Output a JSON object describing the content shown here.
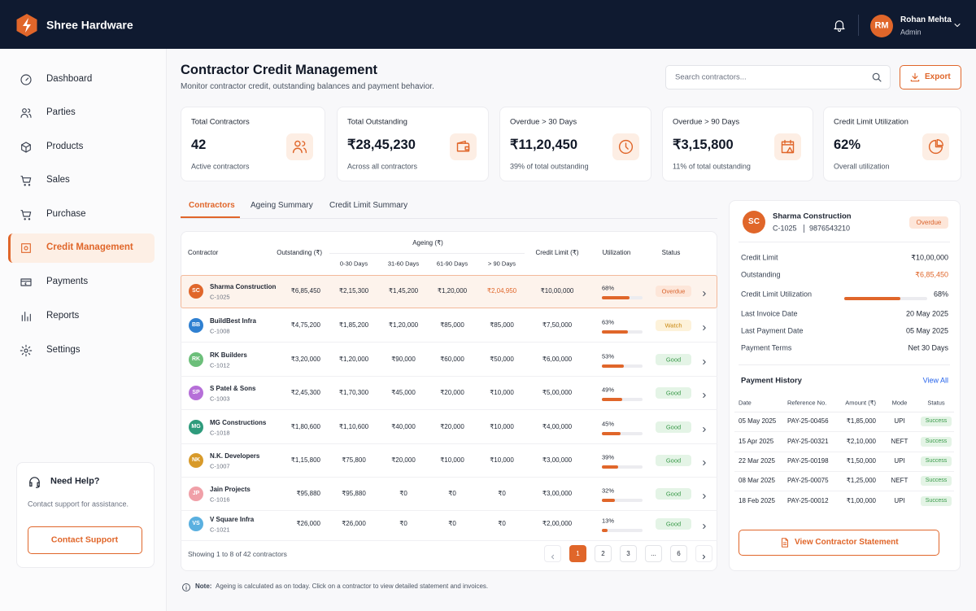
{
  "header": {
    "brand": "Shree Hardware",
    "user": {
      "initials": "RM",
      "name": "Rohan Mehta",
      "role": "Admin"
    }
  },
  "sidebar": {
    "nav": [
      "Dashboard",
      "Parties",
      "Products",
      "Sales",
      "Purchase",
      "Credit Management",
      "Payments",
      "Reports",
      "Settings"
    ],
    "active": 5,
    "help": {
      "title": "Need Help?",
      "text": "Contact support for assistance.",
      "button": "Contact Support"
    }
  },
  "page": {
    "title": "Contractor Credit Management",
    "subtitle": "Monitor contractor credit, outstanding balances and payment behavior.",
    "search_placeholder": "Search contractors...",
    "export": "Export"
  },
  "kpis": [
    {
      "label": "Total Contractors",
      "value": "42",
      "note": "Active contractors"
    },
    {
      "label": "Total Outstanding",
      "value": "₹28,45,230",
      "note": "Across all contractors"
    },
    {
      "label": "Overdue > 30 Days",
      "value": "₹11,20,450",
      "note": "39% of total outstanding"
    },
    {
      "label": "Overdue > 90 Days",
      "value": "₹3,15,800",
      "note": "11% of total outstanding"
    },
    {
      "label": "Credit Limit Utilization",
      "value": "62%",
      "note": "Overall utilization"
    }
  ],
  "tabs": [
    "Contractors",
    "Ageing Summary",
    "Credit Limit Summary"
  ],
  "active_tab": 0,
  "table": {
    "columns": {
      "contractor": "Contractor",
      "outstanding": "Outstanding (₹)",
      "ageing": "Ageing  (₹)",
      "buckets": [
        "0-30 Days",
        "31-60 Days",
        "61-90 Days",
        "> 90 Days"
      ],
      "credit_limit": "Credit Limit (₹)",
      "utilization": "Utilization",
      "status": "Status"
    },
    "selected": 0,
    "rows": [
      {
        "initials": "SC",
        "avatar_color": "#e0662a",
        "name": "Sharma Construction",
        "code": "C-1025",
        "outstanding": "₹6,85,450",
        "ageing": [
          "₹2,15,300",
          "₹1,45,200",
          "₹1,20,000",
          "₹2,04,950"
        ],
        "over_90_color": "#e0662a",
        "credit_limit": "₹10,00,000",
        "utilization": {
          "value": 68,
          "label": "68%"
        },
        "status": {
          "text": "Overdue",
          "color": "#d9622b",
          "bg": "#fde6d9"
        }
      },
      {
        "initials": "BB",
        "avatar_color": "#2f80d1",
        "name": "BuildBest Infra",
        "code": "C-1008",
        "outstanding": "₹4,75,200",
        "ageing": [
          "₹1,85,200",
          "₹1,20,000",
          "₹85,000",
          "₹85,000"
        ],
        "credit_limit": "₹7,50,000",
        "utilization": {
          "value": 63,
          "label": "63%"
        },
        "status": {
          "text": "Watch",
          "color": "#c9880f",
          "bg": "#fdf2da"
        }
      },
      {
        "initials": "RK",
        "avatar_color": "#6cbf7a",
        "name": "RK Builders",
        "code": "C-1012",
        "outstanding": "₹3,20,000",
        "ageing": [
          "₹1,20,000",
          "₹90,000",
          "₹60,000",
          "₹50,000"
        ],
        "credit_limit": "₹6,00,000",
        "utilization": {
          "value": 53,
          "label": "53%"
        },
        "status": {
          "text": "Good",
          "color": "#3a9a4a",
          "bg": "#e4f4e6"
        }
      },
      {
        "initials": "SP",
        "avatar_color": "#b66fd8",
        "name": "S Patel & Sons",
        "code": "C-1003",
        "outstanding": "₹2,45,300",
        "ageing": [
          "₹1,70,300",
          "₹45,000",
          "₹20,000",
          "₹10,000"
        ],
        "credit_limit": "₹5,00,000",
        "utilization": {
          "value": 49,
          "label": "49%"
        },
        "status": {
          "text": "Good",
          "color": "#3a9a4a",
          "bg": "#e4f4e6"
        }
      },
      {
        "initials": "MG",
        "avatar_color": "#2e9b7c",
        "name": "MG Constructions",
        "code": "C-1018",
        "outstanding": "₹1,80,600",
        "ageing": [
          "₹1,10,600",
          "₹40,000",
          "₹20,000",
          "₹10,000"
        ],
        "credit_limit": "₹4,00,000",
        "utilization": {
          "value": 45,
          "label": "45%"
        },
        "status": {
          "text": "Good",
          "color": "#3a9a4a",
          "bg": "#e4f4e6"
        }
      },
      {
        "initials": "NK",
        "avatar_color": "#d89a2a",
        "name": "N.K. Developers",
        "code": "C-1007",
        "outstanding": "₹1,15,800",
        "ageing": [
          "₹75,800",
          "₹20,000",
          "₹10,000",
          "₹10,000"
        ],
        "credit_limit": "₹3,00,000",
        "utilization": {
          "value": 39,
          "label": "39%"
        },
        "status": {
          "text": "Good",
          "color": "#3a9a4a",
          "bg": "#e4f4e6"
        }
      },
      {
        "initials": "JP",
        "avatar_color": "#f0a0a8",
        "name": "Jain Projects",
        "code": "C-1016",
        "outstanding": "₹95,880",
        "ageing": [
          "₹95,880",
          "₹0",
          "₹0",
          "₹0"
        ],
        "credit_limit": "₹3,00,000",
        "utilization": {
          "value": 32,
          "label": "32%"
        },
        "status": {
          "text": "Good",
          "color": "#3a9a4a",
          "bg": "#e4f4e6"
        }
      },
      {
        "initials": "VS",
        "avatar_color": "#5ab0e0",
        "name": "V Square Infra",
        "code": "C-1021",
        "outstanding": "₹26,000",
        "ageing": [
          "₹26,000",
          "₹0",
          "₹0",
          "₹0"
        ],
        "credit_limit": "₹2,00,000",
        "utilization": {
          "value": 13,
          "label": "13%"
        },
        "status": {
          "text": "Good",
          "color": "#3a9a4a",
          "bg": "#e4f4e6"
        }
      }
    ],
    "footer": "Showing 1 to 8 of 42 contractors",
    "pages": [
      "1",
      "2",
      "3",
      "...",
      "6"
    ],
    "current_page": 0
  },
  "detail": {
    "initials": "SC",
    "avatar_color": "#e0662a",
    "name": "Sharma Construction",
    "code": "C-1025",
    "phone": "9876543210",
    "status": {
      "text": "Overdue",
      "color": "#d9622b",
      "bg": "#fde6d9"
    },
    "fields": [
      {
        "label": "Credit Limit",
        "value": "₹10,00,000"
      },
      {
        "label": "Outstanding",
        "value": "₹6,85,450",
        "color": "#e0662a"
      },
      {
        "label": "Credit Limit Utilization",
        "value": "68%",
        "bar": 68
      },
      {
        "label": "Last Invoice Date",
        "value": "20 May 2025"
      },
      {
        "label": "Last Payment Date",
        "value": "05 May 2025"
      },
      {
        "label": "Payment Terms",
        "value": "Net 30 Days"
      }
    ],
    "history": {
      "title": "Payment History",
      "link": "View All",
      "columns": [
        "Date",
        "Reference No.",
        "Amount (₹)",
        "Mode",
        "Status"
      ],
      "rows": [
        [
          "05 May 2025",
          "PAY-25-00456",
          "₹1,85,000",
          "UPI",
          "Success"
        ],
        [
          "15 Apr 2025",
          "PAY-25-00321",
          "₹2,10,000",
          "NEFT",
          "Success"
        ],
        [
          "22 Mar 2025",
          "PAY-25-00198",
          "₹1,50,000",
          "UPI",
          "Success"
        ],
        [
          "08 Mar 2025",
          "PAY-25-00075",
          "₹1,25,000",
          "NEFT",
          "Success"
        ],
        [
          "18 Feb 2025",
          "PAY-25-00012",
          "₹1,00,000",
          "UPI",
          "Success"
        ]
      ]
    },
    "button": "View Contractor Statement"
  },
  "note": {
    "label": "Note:",
    "text": "Ageing is calculated as on today. Click on a contractor to view detailed statement and invoices."
  }
}
